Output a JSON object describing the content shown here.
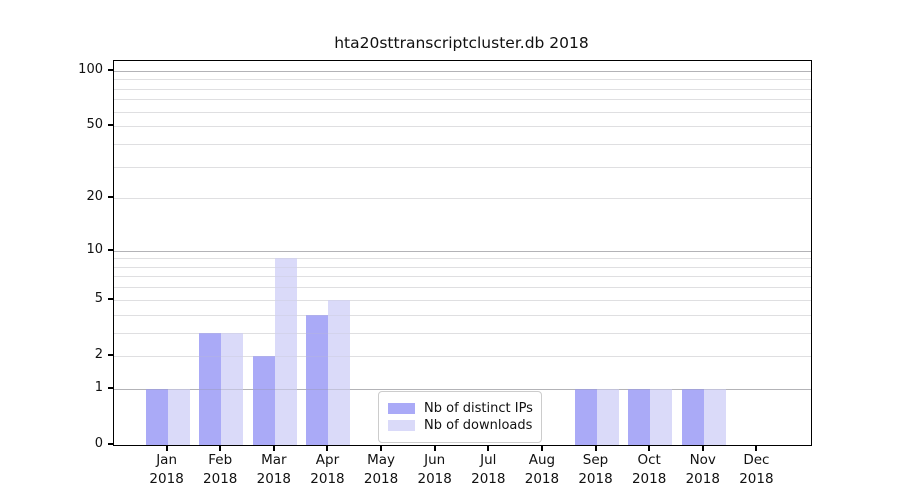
{
  "chart_data": {
    "type": "bar",
    "title": "hta20sttranscriptcluster.db 2018",
    "categories": [
      "Jan 2018",
      "Feb 2018",
      "Mar 2018",
      "Apr 2018",
      "May 2018",
      "Jun 2018",
      "Jul 2018",
      "Aug 2018",
      "Sep 2018",
      "Oct 2018",
      "Nov 2018",
      "Dec 2018"
    ],
    "series": [
      {
        "name": "Nb of distinct IPs",
        "color": "#aaaaf7",
        "values": [
          1,
          3,
          2,
          4,
          0,
          0,
          0,
          0,
          1,
          1,
          1,
          0
        ]
      },
      {
        "name": "Nb of downloads",
        "color": "#dadaf9",
        "values": [
          1,
          3,
          9,
          5,
          0,
          0,
          0,
          0,
          1,
          1,
          1,
          0
        ]
      }
    ],
    "y_axis": {
      "scale": "log10(1+v)",
      "tick_values": [
        0,
        1,
        2,
        5,
        10,
        20,
        50,
        100
      ],
      "tick_labels": [
        "0",
        "1",
        "2",
        "5",
        "10",
        "20",
        "50",
        "100"
      ],
      "major_gridlines": [
        1,
        10,
        100
      ],
      "minor_gridlines": [
        2,
        3,
        4,
        5,
        6,
        7,
        8,
        9,
        20,
        30,
        40,
        50,
        60,
        70,
        80,
        90
      ],
      "ylim": [
        0,
        110
      ]
    },
    "x_axis": {
      "label_line2": "2018"
    },
    "legend": {
      "position": "inside-bottom-center"
    },
    "grid": true
  }
}
